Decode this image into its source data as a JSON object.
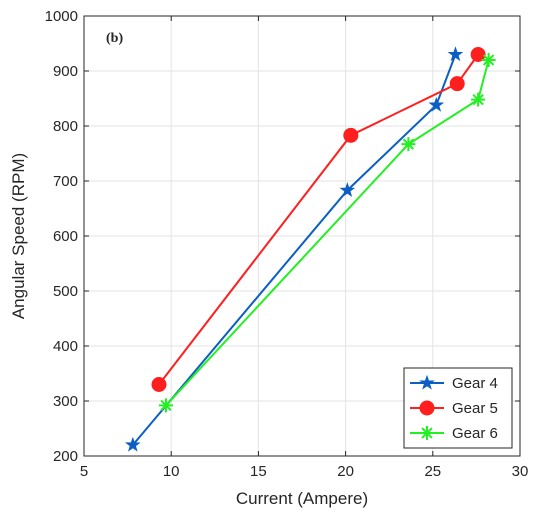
{
  "chart_data": {
    "type": "line",
    "title": "",
    "panel_label": "(b)",
    "xlabel": "Current (Ampere)",
    "ylabel": "Angular Speed (RPM)",
    "xlim": [
      5,
      30
    ],
    "ylim": [
      200,
      1000
    ],
    "xticks": [
      5,
      10,
      15,
      20,
      25,
      30
    ],
    "yticks": [
      200,
      300,
      400,
      500,
      600,
      700,
      800,
      900,
      1000
    ],
    "grid": true,
    "legend_position": "bottom-right",
    "series": [
      {
        "name": "Gear 4",
        "color": "#0b5fc4",
        "marker": "star",
        "x": [
          7.8,
          20.1,
          25.2,
          26.3
        ],
        "y": [
          220,
          683,
          838,
          930
        ]
      },
      {
        "name": "Gear 5",
        "color": "#ff1f1f",
        "marker": "circle",
        "x": [
          9.3,
          20.3,
          26.4,
          27.6
        ],
        "y": [
          330,
          783,
          877,
          930
        ]
      },
      {
        "name": "Gear 6",
        "color": "#22f022",
        "marker": "asterisk",
        "x": [
          9.7,
          23.6,
          27.6,
          28.2
        ],
        "y": [
          292,
          767,
          848,
          920
        ]
      }
    ]
  }
}
